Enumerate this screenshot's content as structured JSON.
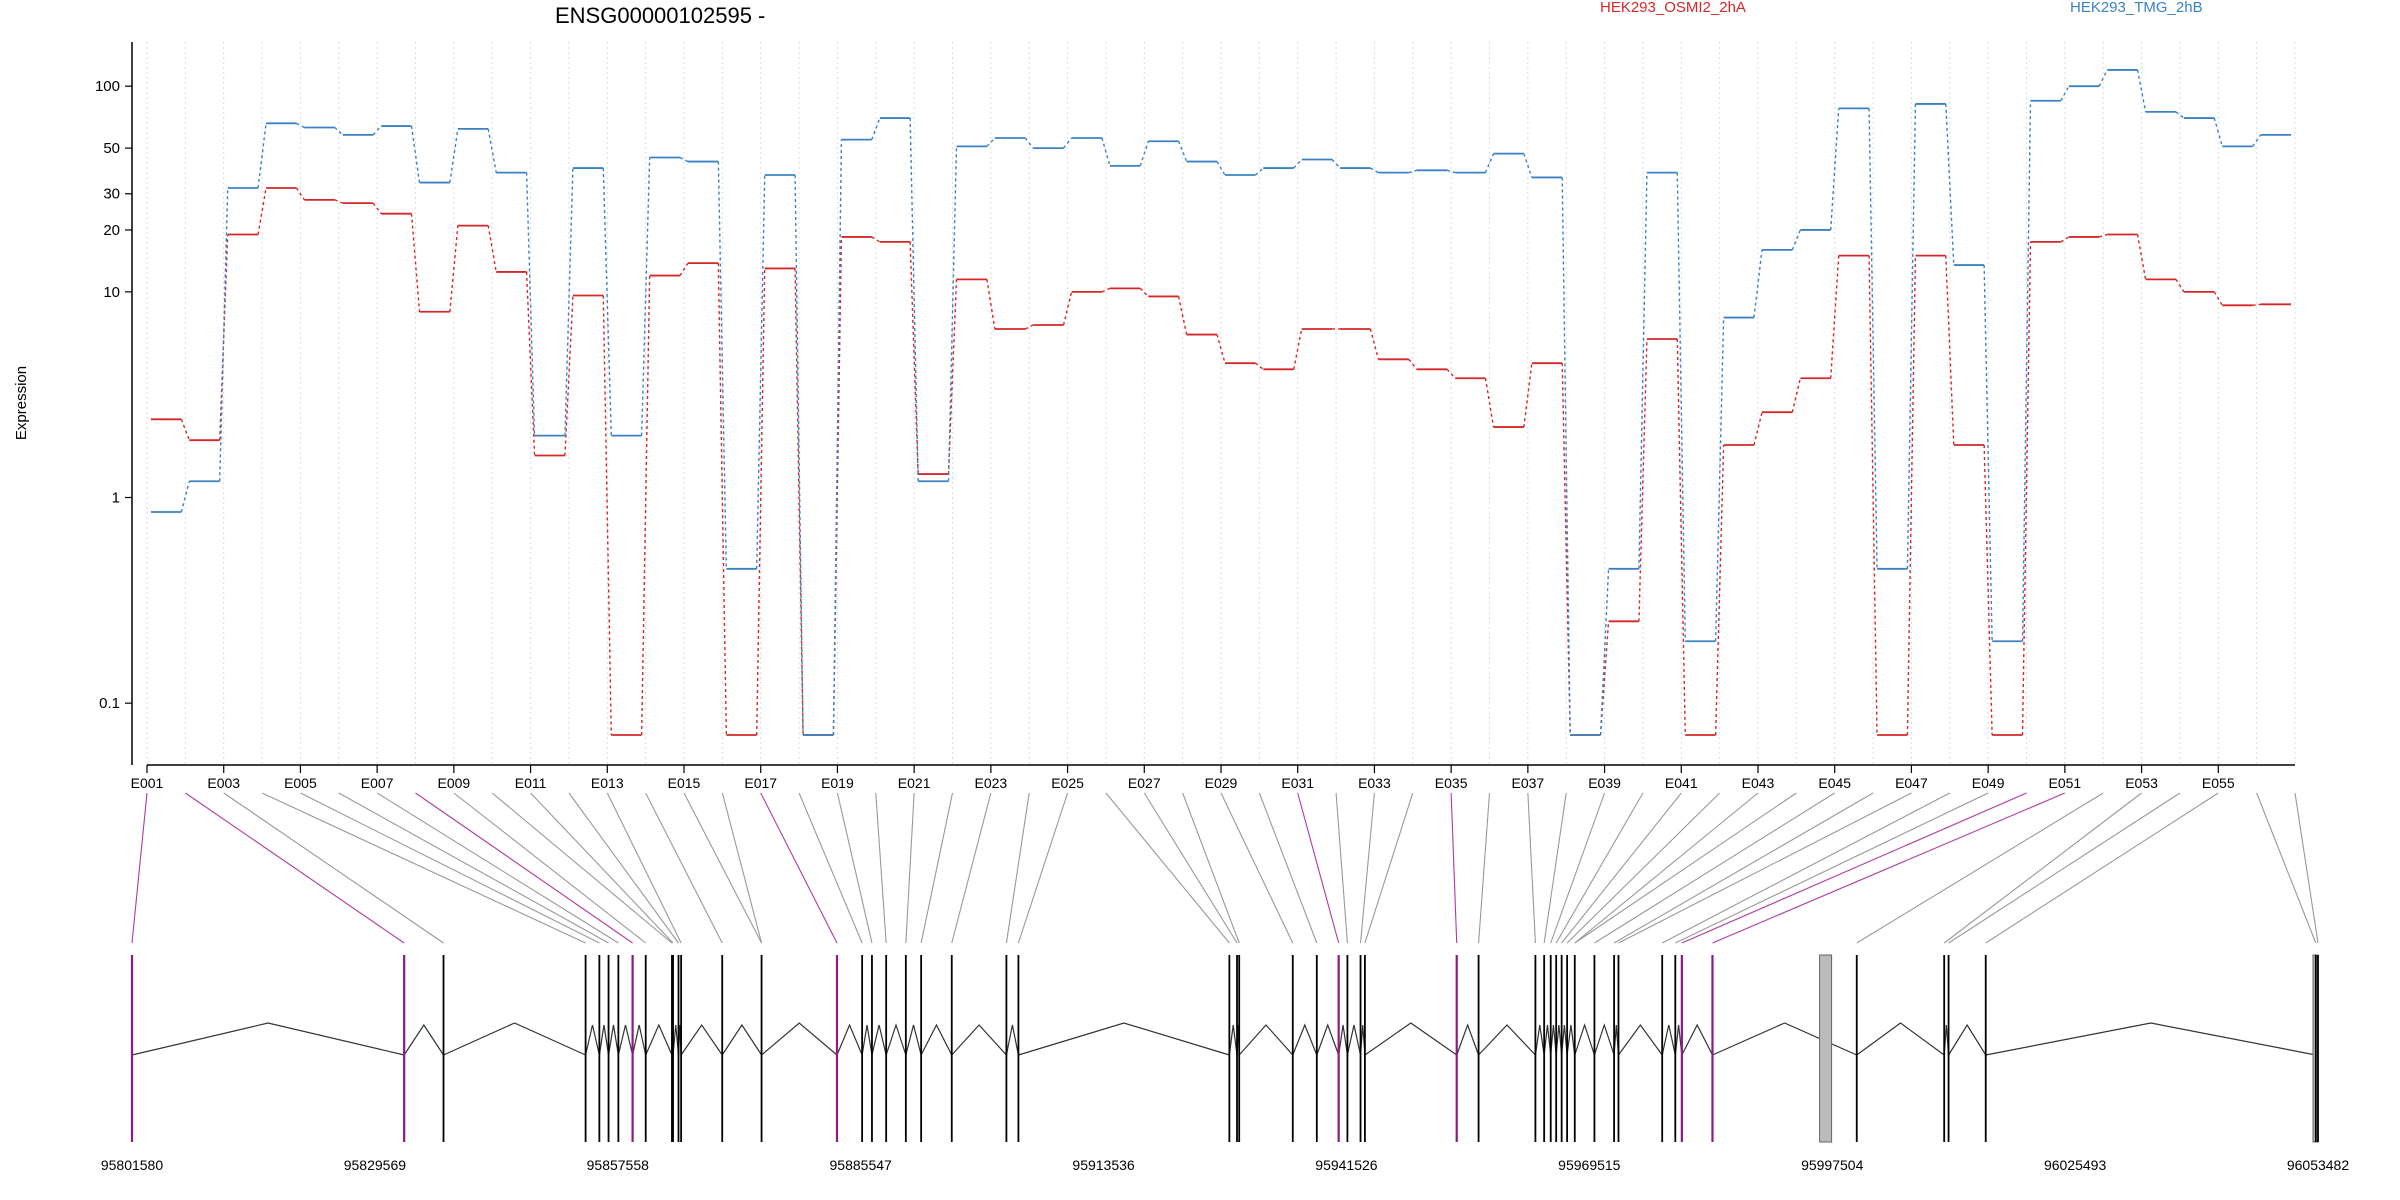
{
  "chart_data": {
    "type": "line",
    "title": "ENSG00000102595 -",
    "xlabel": "",
    "ylabel": "Expression",
    "y_scale": "log",
    "ylim": [
      0.07,
      150
    ],
    "y_ticks": [
      {
        "label": "100",
        "value": 100
      },
      {
        "label": "50",
        "value": 50
      },
      {
        "label": "30",
        "value": 30
      },
      {
        "label": "20",
        "value": 20
      },
      {
        "label": "10",
        "value": 10
      },
      {
        "label": "1",
        "value": 1
      },
      {
        "label": "0.1",
        "value": 0.1
      }
    ],
    "categories": [
      "E001",
      "E002",
      "E003",
      "E004",
      "E005",
      "E006",
      "E007",
      "E008",
      "E009",
      "E010",
      "E011",
      "E012",
      "E013",
      "E014",
      "E015",
      "E016",
      "E017",
      "E018",
      "E019",
      "E020",
      "E021",
      "E022",
      "E023",
      "E024",
      "E025",
      "E026",
      "E027",
      "E028",
      "E029",
      "E030",
      "E031",
      "E032",
      "E033",
      "E034",
      "E035",
      "E036",
      "E037",
      "E038",
      "E039",
      "E040",
      "E041",
      "E042",
      "E043",
      "E044",
      "E045",
      "E046",
      "E047",
      "E048",
      "E049",
      "E050",
      "E051",
      "E052",
      "E053",
      "E054",
      "E055",
      "E056"
    ],
    "tick_labels": [
      "E001",
      "E003",
      "E005",
      "E007",
      "E009",
      "E011",
      "E013",
      "E015",
      "E017",
      "E019",
      "E021",
      "E023",
      "E025",
      "E027",
      "E029",
      "E031",
      "E033",
      "E035",
      "E037",
      "E039",
      "E041",
      "E043",
      "E045",
      "E047",
      "E049",
      "E051",
      "E053",
      "E055"
    ],
    "grid": true,
    "legend_position": "top",
    "series": [
      {
        "name": "HEK293_OSMI2_2hA",
        "color": "#d62728",
        "values": [
          2.4,
          1.9,
          19,
          32,
          28,
          27,
          24,
          8,
          21,
          12.5,
          1.6,
          9.6,
          0.07,
          12,
          13.8,
          0.07,
          13,
          0.07,
          18.5,
          17.5,
          1.3,
          11.5,
          6.6,
          6.9,
          10,
          10.4,
          9.5,
          6.2,
          4.5,
          4.2,
          6.6,
          6.6,
          4.7,
          4.2,
          3.8,
          2.2,
          4.5,
          0.07,
          0.25,
          5.9,
          0.07,
          1.8,
          2.6,
          3.8,
          15,
          0.07,
          15,
          1.8,
          0.07,
          17.5,
          18.5,
          19,
          11.5,
          10,
          8.6,
          8.7
        ]
      },
      {
        "name": "HEK293_TMG_2hB",
        "color": "#3b82c4",
        "values": [
          0.85,
          1.2,
          32,
          66,
          63,
          58,
          64,
          34,
          62,
          38,
          2.0,
          40,
          2.0,
          45,
          43,
          0.45,
          37,
          0.07,
          55,
          70,
          1.2,
          51,
          56,
          50,
          56,
          41,
          54,
          43,
          37,
          40,
          44,
          40,
          38,
          39,
          38,
          47,
          36,
          0.07,
          0.45,
          38,
          0.2,
          7.5,
          16,
          20,
          78,
          0.45,
          82,
          13.5,
          0.2,
          85,
          100,
          120,
          75,
          70,
          51,
          58
        ]
      }
    ]
  },
  "gene_model": {
    "coord_labels": [
      "95801580",
      "95829569",
      "95857558",
      "95885547",
      "95913536",
      "95941526",
      "95969515",
      "95997504",
      "96025493",
      "96053482"
    ],
    "exon_line_color": "#000000",
    "highlight_color": "#8b1a8b",
    "link_color": "#999999",
    "link_highlight_color": "#b03aa0",
    "intron_color": "#333333",
    "shaded_color": "#bbbbbb"
  }
}
